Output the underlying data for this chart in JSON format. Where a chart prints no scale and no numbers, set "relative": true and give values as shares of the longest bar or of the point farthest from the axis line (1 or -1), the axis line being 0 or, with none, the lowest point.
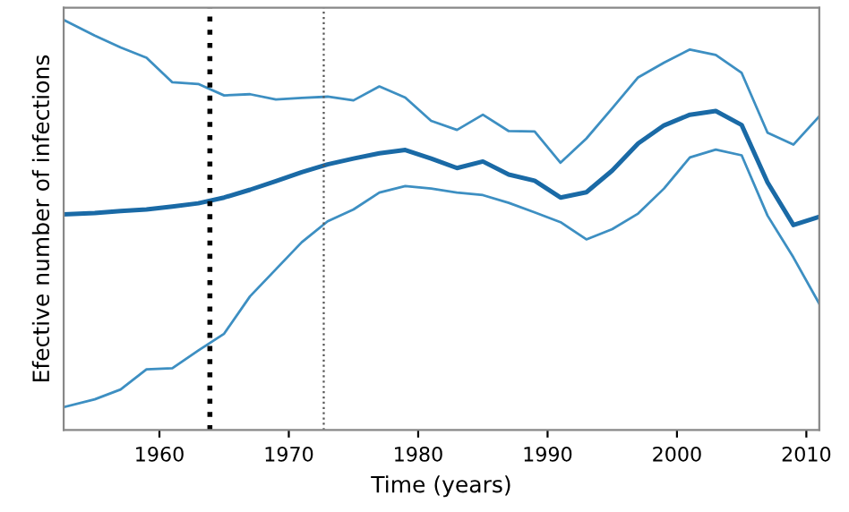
{
  "chart_data": {
    "type": "line",
    "relative": true,
    "xlabel": "Time (years)",
    "ylabel": "Efective number of infections",
    "x": [
      1952.6,
      1955,
      1957,
      1959,
      1961,
      1963,
      1965,
      1967,
      1969,
      1971,
      1973,
      1975,
      1977,
      1979,
      1981,
      1983,
      1985,
      1987,
      1989,
      1991,
      1993,
      1995,
      1997,
      1999,
      2001,
      2003,
      2005,
      2007,
      2009,
      2011
    ],
    "xlim": [
      1952.6,
      2011
    ],
    "xticks": [
      1960,
      1970,
      1980,
      1990,
      2000,
      2010
    ],
    "tick_labels": "x",
    "grid": false,
    "legend": false,
    "marker": "none",
    "series": [
      {
        "color": "#3d8fc2",
        "line_style": "solid",
        "values": [
          1.0,
          0.962,
          0.933,
          0.908,
          0.848,
          0.844,
          0.816,
          0.819,
          0.806,
          0.81,
          0.813,
          0.804,
          0.838,
          0.811,
          0.754,
          0.732,
          0.769,
          0.729,
          0.728,
          0.652,
          0.711,
          0.785,
          0.86,
          0.896,
          0.928,
          0.915,
          0.871,
          0.725,
          0.696,
          0.765
        ]
      },
      {
        "color": "#1a6aa6",
        "line_style": "solid",
        "values": [
          0.526,
          0.529,
          0.534,
          0.538,
          0.545,
          0.553,
          0.567,
          0.586,
          0.607,
          0.629,
          0.648,
          0.662,
          0.675,
          0.683,
          0.662,
          0.639,
          0.655,
          0.623,
          0.608,
          0.567,
          0.58,
          0.633,
          0.699,
          0.743,
          0.769,
          0.778,
          0.744,
          0.604,
          0.5,
          0.52
        ]
      },
      {
        "color": "#3d8fc2",
        "line_style": "solid",
        "values": [
          0.056,
          0.075,
          0.099,
          0.148,
          0.151,
          0.194,
          0.235,
          0.326,
          0.392,
          0.458,
          0.509,
          0.538,
          0.579,
          0.595,
          0.589,
          0.579,
          0.573,
          0.554,
          0.531,
          0.507,
          0.465,
          0.49,
          0.528,
          0.589,
          0.665,
          0.684,
          0.67,
          0.523,
          0.421,
          0.308
        ]
      }
    ],
    "ref_lines": [
      {
        "axis": "x",
        "value": 1963.9,
        "color": "#000000",
        "line_style": "dotted"
      },
      {
        "axis": "x",
        "value": 1972.7,
        "color": "#555555",
        "line_style": "dotted"
      }
    ]
  }
}
